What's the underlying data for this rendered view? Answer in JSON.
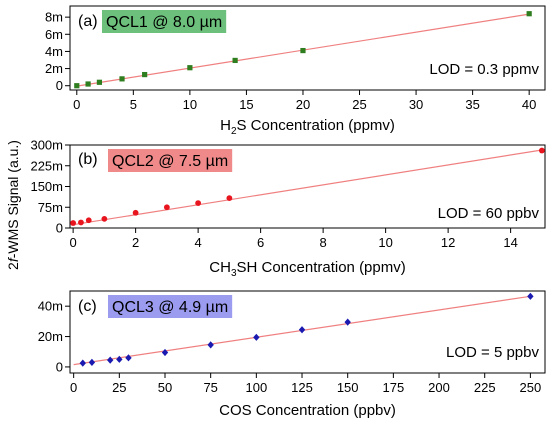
{
  "chart_data": [
    {
      "type": "scatter",
      "panel_label": "(a)",
      "laser_label": "QCL1 @ 8.0 µm",
      "laser_color": "#6cc07c",
      "lod_text": "LOD = 0.3 ppmv",
      "xlabel": {
        "pre": "H",
        "sub": "2",
        "post": "S Concentration (ppmv)"
      },
      "xlim": [
        -0.6,
        41.4
      ],
      "ylim": [
        -0.5,
        9.3
      ],
      "xticks": [
        0,
        5,
        10,
        15,
        20,
        25,
        30,
        35,
        40
      ],
      "yticks": [
        0,
        2,
        4,
        6,
        8
      ],
      "ytick_labels": [
        "0",
        "2m",
        "4m",
        "6m",
        "8m"
      ],
      "marker": "square",
      "marker_color": "#2e7d1e",
      "fit_color": "#f08080",
      "fit_x": [
        0,
        40
      ],
      "fit_y": [
        -0.05,
        8.35
      ],
      "series": [
        {
          "x": [
            0,
            1,
            2,
            4,
            6,
            10,
            14,
            20,
            40
          ],
          "y": [
            0.0,
            0.2,
            0.4,
            0.8,
            1.3,
            2.1,
            2.95,
            4.1,
            8.4
          ]
        }
      ]
    },
    {
      "type": "scatter",
      "panel_label": "(b)",
      "laser_label": "QCL2 @ 7.5 µm",
      "laser_color": "#f08a8a",
      "lod_text": "LOD =  60 ppbv",
      "xlabel": {
        "pre": "CH",
        "sub": "3",
        "post": "SH Concentration (ppmv)"
      },
      "xlim": [
        -0.1,
        15.1
      ],
      "ylim": [
        0,
        300
      ],
      "xticks": [
        0,
        2,
        4,
        6,
        8,
        10,
        12,
        14
      ],
      "yticks": [
        0,
        75,
        150,
        225,
        300
      ],
      "ytick_labels": [
        "0",
        "75m",
        "150m",
        "225m",
        "300m"
      ],
      "marker": "circle",
      "marker_color": "#e8141e",
      "fit_color": "#f08080",
      "fit_x": [
        0,
        15
      ],
      "fit_y": [
        12,
        282
      ],
      "series": [
        {
          "x": [
            0,
            0.25,
            0.5,
            1,
            2,
            3,
            4,
            5,
            15
          ],
          "y": [
            18,
            20,
            28,
            33,
            55,
            75,
            90,
            108,
            280
          ]
        }
      ]
    },
    {
      "type": "scatter",
      "panel_label": "(c)",
      "laser_label": "QCL3 @ 4.9 µm",
      "laser_color": "#9b9bf0",
      "lod_text": "LOD = 5 ppbv",
      "xlabel": {
        "pre": "COS Concentration (ppbv)",
        "sub": "",
        "post": ""
      },
      "xlim": [
        -2,
        258
      ],
      "ylim": [
        -4,
        50
      ],
      "xticks": [
        0,
        25,
        50,
        75,
        100,
        125,
        150,
        175,
        200,
        225,
        250
      ],
      "yticks": [
        0,
        20,
        40
      ],
      "ytick_labels": [
        "0",
        "20m",
        "40m"
      ],
      "marker": "diamond",
      "marker_color": "#1a1ab0",
      "fit_color": "#f08080",
      "fit_x": [
        0,
        250
      ],
      "fit_y": [
        1.5,
        46.5
      ],
      "series": [
        {
          "x": [
            5,
            10,
            20,
            25,
            30,
            50,
            75,
            100,
            125,
            150,
            250
          ],
          "y": [
            2.5,
            3,
            4.5,
            5,
            6,
            9.5,
            14.5,
            19.5,
            24.5,
            29.5,
            46.5
          ]
        }
      ]
    }
  ],
  "shared": {
    "ylabel_prefix": "2",
    "ylabel_italic": "f",
    "ylabel_suffix": "-WMS Signal (a.u.)"
  }
}
